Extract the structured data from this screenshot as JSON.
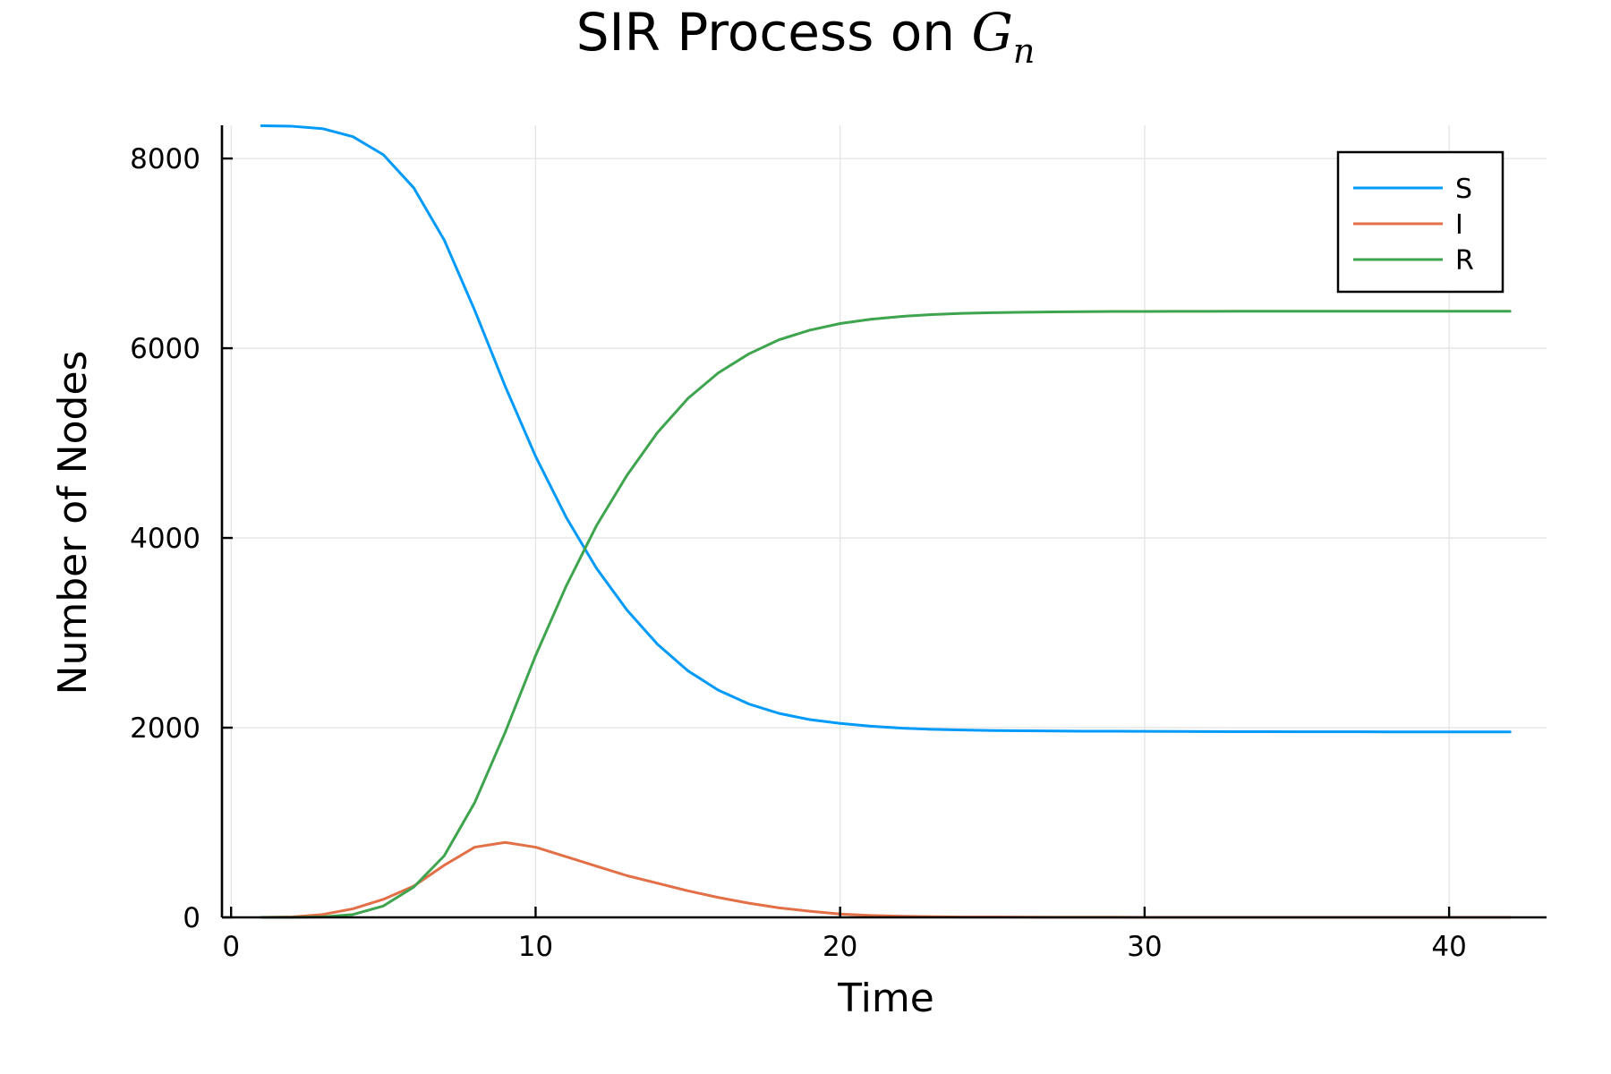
{
  "chart_data": {
    "type": "line",
    "title": "SIR Process on ",
    "title_math": "G",
    "title_math_sub": "n",
    "xlabel": "Time",
    "ylabel": "Number of Nodes",
    "xlim": [
      -0.3,
      43.2
    ],
    "ylim": [
      0,
      8350
    ],
    "xticks": [
      0,
      10,
      20,
      30,
      40
    ],
    "yticks": [
      0,
      2000,
      4000,
      6000,
      8000
    ],
    "xtick_labels": [
      "0",
      "10",
      "20",
      "30",
      "40"
    ],
    "ytick_labels": [
      "0",
      "2000",
      "4000",
      "6000",
      "8000"
    ],
    "grid": true,
    "legend_position": "top-right",
    "x": [
      1,
      2,
      3,
      4,
      5,
      6,
      7,
      8,
      9,
      10,
      11,
      12,
      13,
      14,
      15,
      16,
      17,
      18,
      19,
      20,
      21,
      22,
      23,
      24,
      25,
      26,
      27,
      28,
      29,
      30,
      31,
      32,
      33,
      34,
      35,
      36,
      37,
      38,
      39,
      40,
      41,
      42
    ],
    "series": [
      {
        "name": "S",
        "color": "#009AFA",
        "values": [
          8345,
          8340,
          8315,
          8230,
          8040,
          7690,
          7140,
          6400,
          5600,
          4860,
          4220,
          3680,
          3240,
          2880,
          2600,
          2395,
          2250,
          2150,
          2085,
          2045,
          2015,
          1995,
          1983,
          1975,
          1970,
          1967,
          1965,
          1963,
          1962,
          1961,
          1960,
          1959,
          1958,
          1958,
          1957,
          1957,
          1957,
          1956,
          1956,
          1956,
          1956,
          1956
        ]
      },
      {
        "name": "I",
        "color": "#E36F47",
        "values": [
          0,
          5,
          30,
          90,
          190,
          330,
          550,
          740,
          790,
          740,
          640,
          540,
          440,
          360,
          280,
          210,
          150,
          100,
          65,
          35,
          20,
          12,
          7,
          4,
          3,
          2,
          1,
          1,
          1,
          0,
          0,
          0,
          0,
          0,
          0,
          0,
          0,
          0,
          0,
          0,
          0,
          0
        ]
      },
      {
        "name": "R",
        "color": "#3EA44E",
        "values": [
          0,
          0,
          5,
          30,
          120,
          320,
          650,
          1210,
          1950,
          2760,
          3490,
          4130,
          4660,
          5110,
          5470,
          5740,
          5940,
          6090,
          6190,
          6260,
          6305,
          6335,
          6355,
          6367,
          6374,
          6379,
          6383,
          6385,
          6387,
          6388,
          6389,
          6389,
          6390,
          6390,
          6390,
          6390,
          6390,
          6390,
          6390,
          6390,
          6390,
          6390
        ]
      }
    ]
  }
}
